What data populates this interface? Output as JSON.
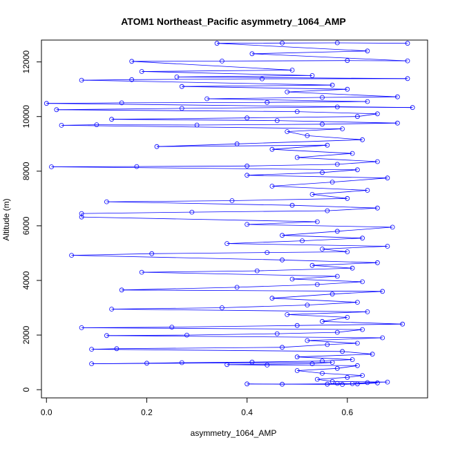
{
  "chart_data": {
    "type": "scatter",
    "title": "ATOM1 Northeast_Pacific asymmetry_1064_AMP",
    "xlabel": "asymmetry_1064_AMP",
    "ylabel": "Altitude (m)",
    "xlim": [
      -0.01,
      0.76
    ],
    "ylim": [
      -300,
      12800
    ],
    "xticks": [
      0.0,
      0.2,
      0.4,
      0.6
    ],
    "xtick_labels": [
      "0.0",
      "0.2",
      "0.4",
      "0.6"
    ],
    "yticks": [
      0,
      2000,
      4000,
      6000,
      8000,
      10000,
      12000
    ],
    "ytick_labels": [
      "0",
      "2000",
      "4000",
      "6000",
      "8000",
      "10000",
      "12000"
    ],
    "grid": false,
    "connected": true,
    "marker": "open-circle",
    "color": "#0000ff",
    "series": [
      {
        "points": [
          [
            0.56,
            200
          ],
          [
            0.58,
            230
          ],
          [
            0.62,
            210
          ],
          [
            0.66,
            250
          ],
          [
            0.59,
            190
          ],
          [
            0.4,
            210
          ],
          [
            0.47,
            200
          ],
          [
            0.61,
            220
          ],
          [
            0.64,
            260
          ],
          [
            0.68,
            280
          ],
          [
            0.57,
            300
          ],
          [
            0.54,
            380
          ],
          [
            0.6,
            450
          ],
          [
            0.63,
            520
          ],
          [
            0.55,
            600
          ],
          [
            0.5,
            700
          ],
          [
            0.58,
            780
          ],
          [
            0.62,
            880
          ],
          [
            0.44,
            900
          ],
          [
            0.36,
            920
          ],
          [
            0.53,
            950
          ],
          [
            0.57,
            1000
          ],
          [
            0.09,
            950
          ],
          [
            0.2,
            970
          ],
          [
            0.27,
            990
          ],
          [
            0.41,
            1010
          ],
          [
            0.55,
            1050
          ],
          [
            0.61,
            1100
          ],
          [
            0.5,
            1200
          ],
          [
            0.65,
            1300
          ],
          [
            0.59,
            1400
          ],
          [
            0.09,
            1480
          ],
          [
            0.14,
            1500
          ],
          [
            0.47,
            1550
          ],
          [
            0.56,
            1650
          ],
          [
            0.62,
            1700
          ],
          [
            0.52,
            1800
          ],
          [
            0.67,
            1900
          ],
          [
            0.12,
            1980
          ],
          [
            0.28,
            2000
          ],
          [
            0.46,
            2050
          ],
          [
            0.58,
            2100
          ],
          [
            0.63,
            2200
          ],
          [
            0.07,
            2270
          ],
          [
            0.25,
            2290
          ],
          [
            0.5,
            2350
          ],
          [
            0.71,
            2400
          ],
          [
            0.55,
            2500
          ],
          [
            0.6,
            2650
          ],
          [
            0.48,
            2750
          ],
          [
            0.64,
            2850
          ],
          [
            0.13,
            2950
          ],
          [
            0.35,
            3000
          ],
          [
            0.52,
            3100
          ],
          [
            0.62,
            3200
          ],
          [
            0.45,
            3350
          ],
          [
            0.57,
            3500
          ],
          [
            0.67,
            3600
          ],
          [
            0.15,
            3650
          ],
          [
            0.38,
            3750
          ],
          [
            0.54,
            3850
          ],
          [
            0.63,
            3950
          ],
          [
            0.49,
            4050
          ],
          [
            0.58,
            4150
          ],
          [
            0.19,
            4300
          ],
          [
            0.42,
            4350
          ],
          [
            0.61,
            4450
          ],
          [
            0.53,
            4550
          ],
          [
            0.66,
            4650
          ],
          [
            0.47,
            4750
          ],
          [
            0.05,
            4920
          ],
          [
            0.21,
            4980
          ],
          [
            0.44,
            5020
          ],
          [
            0.6,
            5050
          ],
          [
            0.55,
            5150
          ],
          [
            0.68,
            5250
          ],
          [
            0.36,
            5350
          ],
          [
            0.51,
            5450
          ],
          [
            0.63,
            5550
          ],
          [
            0.47,
            5650
          ],
          [
            0.58,
            5800
          ],
          [
            0.69,
            5950
          ],
          [
            0.4,
            6050
          ],
          [
            0.54,
            6150
          ],
          [
            0.07,
            6320
          ],
          [
            0.07,
            6450
          ],
          [
            0.29,
            6500
          ],
          [
            0.56,
            6550
          ],
          [
            0.66,
            6650
          ],
          [
            0.49,
            6750
          ],
          [
            0.12,
            6880
          ],
          [
            0.37,
            6920
          ],
          [
            0.6,
            7000
          ],
          [
            0.53,
            7150
          ],
          [
            0.64,
            7300
          ],
          [
            0.45,
            7450
          ],
          [
            0.57,
            7600
          ],
          [
            0.68,
            7750
          ],
          [
            0.4,
            7850
          ],
          [
            0.55,
            7950
          ],
          [
            0.62,
            8050
          ],
          [
            0.01,
            8160
          ],
          [
            0.18,
            8170
          ],
          [
            0.4,
            8190
          ],
          [
            0.58,
            8250
          ],
          [
            0.66,
            8350
          ],
          [
            0.5,
            8500
          ],
          [
            0.61,
            8650
          ],
          [
            0.45,
            8800
          ],
          [
            0.56,
            8950
          ],
          [
            0.22,
            8900
          ],
          [
            0.38,
            9000
          ],
          [
            0.63,
            9150
          ],
          [
            0.52,
            9300
          ],
          [
            0.48,
            9450
          ],
          [
            0.59,
            9550
          ],
          [
            0.03,
            9680
          ],
          [
            0.1,
            9700
          ],
          [
            0.3,
            9690
          ],
          [
            0.55,
            9720
          ],
          [
            0.7,
            9760
          ],
          [
            0.46,
            9850
          ],
          [
            0.13,
            9900
          ],
          [
            0.4,
            9950
          ],
          [
            0.62,
            10000
          ],
          [
            0.66,
            10100
          ],
          [
            0.5,
            10180
          ],
          [
            0.02,
            10250
          ],
          [
            0.27,
            10300
          ],
          [
            0.58,
            10350
          ],
          [
            0.73,
            10330
          ],
          [
            0.0,
            10480
          ],
          [
            0.15,
            10500
          ],
          [
            0.44,
            10520
          ],
          [
            0.64,
            10550
          ],
          [
            0.32,
            10650
          ],
          [
            0.55,
            10700
          ],
          [
            0.7,
            10720
          ],
          [
            0.48,
            10900
          ],
          [
            0.6,
            11000
          ],
          [
            0.27,
            11100
          ],
          [
            0.57,
            11150
          ],
          [
            0.07,
            11330
          ],
          [
            0.17,
            11350
          ],
          [
            0.43,
            11380
          ],
          [
            0.72,
            11390
          ],
          [
            0.26,
            11450
          ],
          [
            0.53,
            11500
          ],
          [
            0.19,
            11650
          ],
          [
            0.49,
            11700
          ],
          [
            0.17,
            12020
          ],
          [
            0.35,
            12030
          ],
          [
            0.6,
            12050
          ],
          [
            0.72,
            12040
          ],
          [
            0.41,
            12300
          ],
          [
            0.64,
            12400
          ],
          [
            0.34,
            12680
          ],
          [
            0.47,
            12690
          ],
          [
            0.58,
            12700
          ],
          [
            0.72,
            12680
          ]
        ]
      }
    ]
  }
}
